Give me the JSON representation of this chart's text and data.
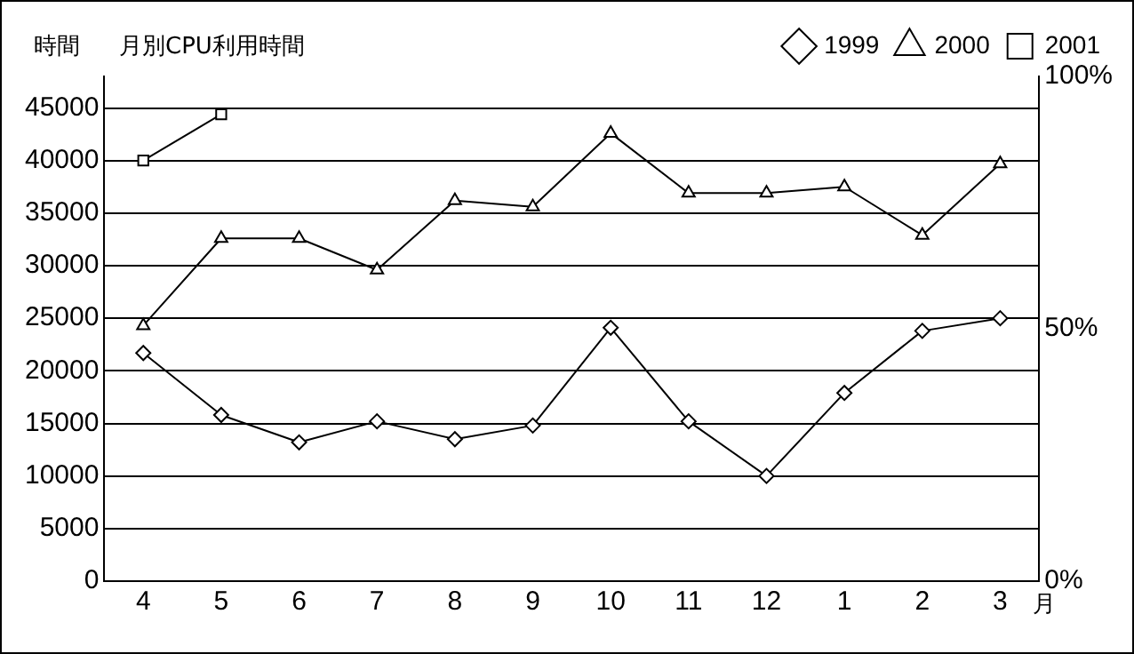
{
  "chart_data": {
    "type": "line",
    "title": "月別CPU利用時間",
    "ylabel": "時間",
    "xlabel": "月",
    "categories": [
      "4",
      "5",
      "6",
      "7",
      "8",
      "9",
      "10",
      "11",
      "12",
      "1",
      "2",
      "3"
    ],
    "series": [
      {
        "name": "1999",
        "color": "#000000",
        "marker": "diamond",
        "values": [
          21700,
          15800,
          13200,
          15200,
          13500,
          14800,
          24100,
          15200,
          10000,
          17900,
          23800,
          25000
        ]
      },
      {
        "name": "2000",
        "color": "#000000",
        "marker": "triangle",
        "values": [
          24300,
          32600,
          32600,
          29600,
          36200,
          35600,
          42600,
          36900,
          36900,
          37500,
          32900,
          39700
        ]
      },
      {
        "name": "2001",
        "color": "#000000",
        "marker": "square",
        "values": [
          40000,
          44400,
          null,
          null,
          null,
          null,
          null,
          null,
          null,
          null,
          null,
          null
        ]
      }
    ],
    "ylim": [
      0,
      48000
    ],
    "yticks": [
      0,
      5000,
      10000,
      15000,
      20000,
      25000,
      30000,
      35000,
      40000,
      45000
    ],
    "y2lim": [
      0,
      100
    ],
    "y2ticks": [
      {
        "value": 0,
        "label": "0%"
      },
      {
        "value": 50,
        "label": "50%"
      },
      {
        "value": 100,
        "label": "100%"
      }
    ],
    "grid": "y",
    "legend": "top right",
    "line_style": "solid"
  }
}
